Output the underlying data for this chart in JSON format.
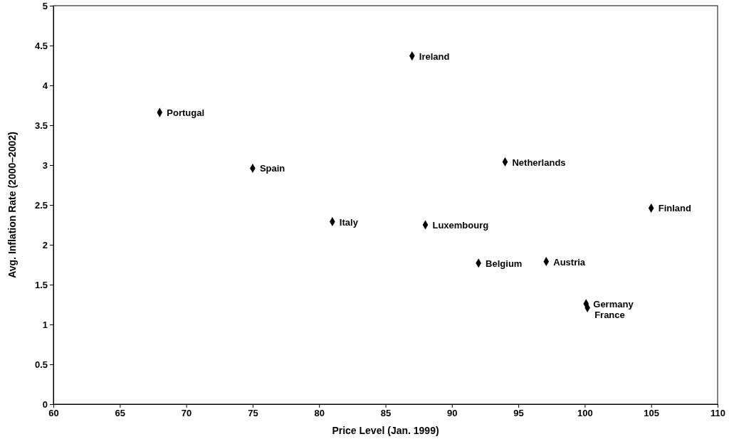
{
  "chart_data": {
    "type": "scatter",
    "xlabel": "Price Level (Jan. 1999)",
    "ylabel": "Avg. Inflation Rate (2000–2002)",
    "x": [
      68,
      75,
      81,
      87,
      88,
      94,
      92,
      97.1,
      100.1,
      100.2,
      105
    ],
    "series": [
      {
        "color": "#000000",
        "values": [
          3.66,
          2.96,
          2.29,
          4.37,
          2.25,
          3.04,
          1.77,
          1.79,
          1.26,
          1.21,
          2.46
        ]
      }
    ],
    "marker": "diamond",
    "grid": false,
    "xlim": [
      60,
      110
    ],
    "xticks": [
      60,
      65,
      70,
      75,
      80,
      85,
      90,
      95,
      100,
      105,
      110
    ],
    "ylim": [
      0,
      5
    ],
    "yticks": [
      0,
      0.5,
      1,
      1.5,
      2,
      2.5,
      3,
      3.5,
      4,
      4.5,
      5
    ],
    "annotations": [
      {
        "text": "Portugal",
        "x": 68,
        "y": 3.66
      },
      {
        "text": "Spain",
        "x": 75,
        "y": 2.96
      },
      {
        "text": "Italy",
        "x": 81,
        "y": 2.29
      },
      {
        "text": "Ireland",
        "x": 87,
        "y": 4.37
      },
      {
        "text": "Luxembourg",
        "x": 88,
        "y": 2.25
      },
      {
        "text": "Netherlands",
        "x": 94,
        "y": 3.04
      },
      {
        "text": "Belgium",
        "x": 92,
        "y": 1.77
      },
      {
        "text": "Austria",
        "x": 97.1,
        "y": 1.79
      },
      {
        "text": "Germany",
        "x": 100.1,
        "y": 1.26
      },
      {
        "text": "France",
        "x": 100.2,
        "y": 1.21
      },
      {
        "text": "Finland",
        "x": 105,
        "y": 2.46
      }
    ]
  }
}
